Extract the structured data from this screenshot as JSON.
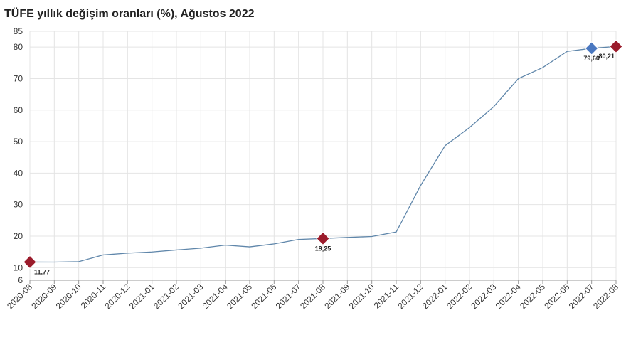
{
  "chart_data": {
    "type": "line",
    "title": "TÜFE yıllık değişim oranları (%), Ağustos 2022",
    "categories": [
      "2020-08",
      "2020-09",
      "2020-10",
      "2020-11",
      "2020-12",
      "2021-01",
      "2021-02",
      "2021-03",
      "2021-04",
      "2021-05",
      "2021-06",
      "2021-07",
      "2021-08",
      "2021-09",
      "2021-10",
      "2021-11",
      "2021-12",
      "2022-01",
      "2022-02",
      "2022-03",
      "2022-04",
      "2022-05",
      "2022-06",
      "2022-07",
      "2022-08"
    ],
    "values": [
      11.77,
      11.75,
      11.89,
      14.03,
      14.6,
      14.97,
      15.61,
      16.19,
      17.14,
      16.59,
      17.53,
      18.95,
      19.25,
      19.58,
      19.89,
      21.31,
      36.08,
      48.69,
      54.44,
      61.14,
      69.97,
      73.5,
      78.62,
      79.6,
      80.21
    ],
    "value_labels": [
      "11,77",
      null,
      null,
      null,
      null,
      null,
      null,
      null,
      null,
      null,
      null,
      null,
      "19,25",
      null,
      null,
      null,
      null,
      null,
      null,
      null,
      null,
      null,
      null,
      "79,60",
      "80,21"
    ],
    "marker_colors": [
      "#9b1c2c",
      null,
      null,
      null,
      null,
      null,
      null,
      null,
      null,
      null,
      null,
      null,
      "#9b1c2c",
      null,
      null,
      null,
      null,
      null,
      null,
      null,
      null,
      null,
      null,
      "#4a78c0",
      "#9b1c2c"
    ],
    "color": "#5f86aa",
    "ylim": [
      6,
      85
    ],
    "yticks": [
      6,
      10,
      20,
      30,
      40,
      50,
      60,
      70,
      80,
      85
    ],
    "grid": true
  }
}
